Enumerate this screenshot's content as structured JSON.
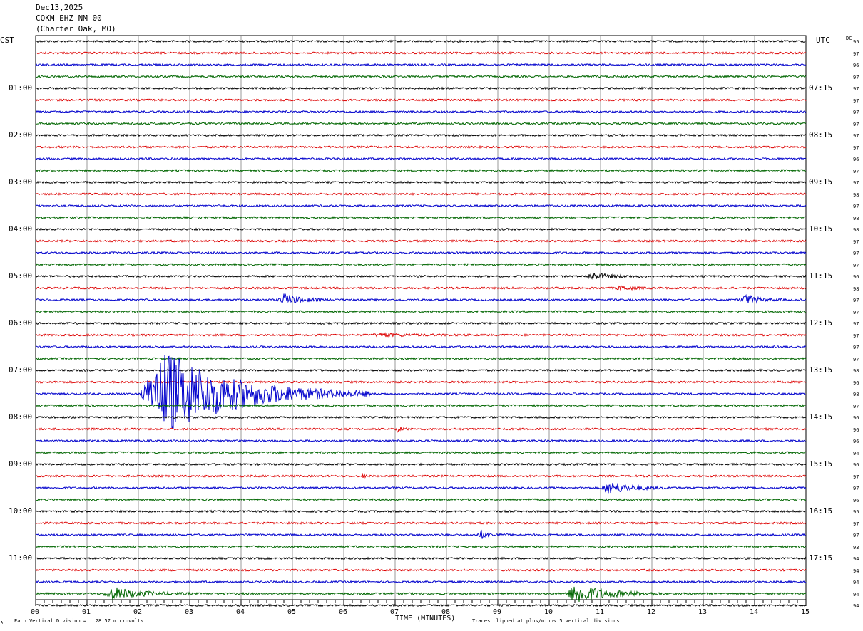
{
  "header": {
    "date": "Dec13,2025",
    "station": "COKM EHZ NM 00",
    "location": "(Charter Oak, MO)"
  },
  "left_tz": "CST",
  "right_tz": "UTC",
  "dc_label": "DC",
  "footer": {
    "scale_note": "Each Vertical Division =   28.57 microvolts",
    "x_title": "TIME (MINUTES)",
    "clip_note": "Traces clipped at plus/minus 5 vertical divisions",
    "corner_mark": "A"
  },
  "colors": {
    "trace_cycle": [
      "#000000",
      "#dd0000",
      "#0000cc",
      "#006600"
    ],
    "grid": "#000000"
  },
  "chart_data": {
    "type": "line",
    "xlabel": "TIME (MINUTES)",
    "x_ticks": [
      "00",
      "01",
      "02",
      "03",
      "04",
      "05",
      "06",
      "07",
      "08",
      "09",
      "10",
      "11",
      "12",
      "13",
      "14",
      "15"
    ],
    "xlim": [
      0,
      15
    ],
    "left_hour_labels": [
      "01:00",
      "02:00",
      "03:00",
      "04:00",
      "05:00",
      "06:00",
      "07:00",
      "08:00",
      "09:00",
      "10:00",
      "11:00"
    ],
    "right_hour_labels": [
      "07:15",
      "08:15",
      "09:15",
      "10:15",
      "11:15",
      "12:15",
      "13:15",
      "14:15",
      "15:15",
      "16:15",
      "17:15"
    ],
    "dc_offsets": [
      "95",
      "97",
      "96",
      "97",
      "97",
      "97",
      "97",
      "97",
      "97",
      "97",
      "96",
      "97",
      "97",
      "98",
      "97",
      "98",
      "98",
      "97",
      "97",
      "97",
      "96",
      "98",
      "97",
      "97",
      "97",
      "97",
      "97",
      "97",
      "98",
      "96",
      "98",
      "97",
      "96",
      "96",
      "96",
      "94",
      "96",
      "97",
      "97",
      "96",
      "95",
      "97",
      "97",
      "93",
      "94",
      "94",
      "94",
      "94",
      "94"
    ],
    "events": [
      {
        "trace": 3,
        "start_min": 7.7,
        "end_min": 7.75,
        "amp": 5
      },
      {
        "trace": 20,
        "start_min": 10.7,
        "end_min": 11.9,
        "amp": 5
      },
      {
        "trace": 21,
        "start_min": 11.3,
        "end_min": 12.0,
        "amp": 3
      },
      {
        "trace": 22,
        "start_min": 4.7,
        "end_min": 5.8,
        "amp": 8
      },
      {
        "trace": 22,
        "start_min": 13.7,
        "end_min": 14.6,
        "amp": 7
      },
      {
        "trace": 25,
        "start_min": 6.5,
        "end_min": 8.5,
        "amp": 2
      },
      {
        "trace": 30,
        "start_min": 2.0,
        "end_min": 6.5,
        "amp": 60
      },
      {
        "trace": 33,
        "start_min": 7.0,
        "end_min": 7.3,
        "amp": 4
      },
      {
        "trace": 37,
        "start_min": 6.35,
        "end_min": 6.5,
        "amp": 5
      },
      {
        "trace": 38,
        "start_min": 11.0,
        "end_min": 12.4,
        "amp": 9
      },
      {
        "trace": 42,
        "start_min": 8.6,
        "end_min": 9.2,
        "amp": 5
      },
      {
        "trace": 47,
        "start_min": 1.3,
        "end_min": 3.0,
        "amp": 9
      },
      {
        "trace": 47,
        "start_min": 10.3,
        "end_min": 12.2,
        "amp": 14
      }
    ]
  }
}
